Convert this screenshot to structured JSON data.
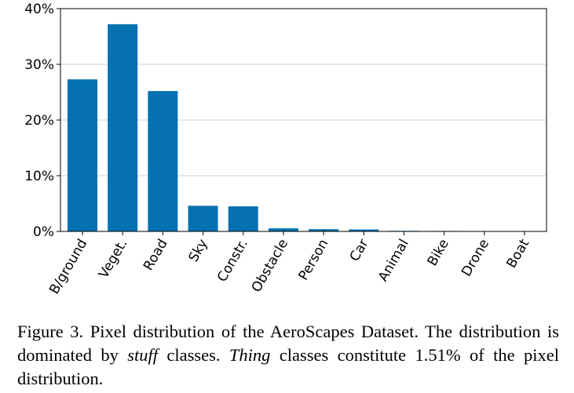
{
  "chart_data": {
    "type": "bar",
    "categories": [
      "B/ground",
      "Veget.",
      "Road",
      "Sky",
      "Constr.",
      "Obstacle",
      "Person",
      "Car",
      "Animal",
      "Bike",
      "Drone",
      "Boat"
    ],
    "values": [
      27.3,
      37.2,
      25.2,
      4.6,
      4.5,
      0.55,
      0.4,
      0.35,
      0.1,
      0.08,
      0.06,
      0.05
    ],
    "yticks": [
      0,
      10,
      20,
      30,
      40
    ],
    "ytick_labels": [
      "0%",
      "10%",
      "20%",
      "30%",
      "40%"
    ],
    "ylim": [
      0,
      40
    ],
    "bar_color": "#0571b0",
    "grid": "y",
    "title": "",
    "xlabel": "",
    "ylabel": ""
  },
  "caption": {
    "prefix": "Figure 3. Pixel distribution of the AeroScapes Dataset. The distribution is dominated by ",
    "stuff": "stuff",
    "middle": " classes. ",
    "thing": "Thing",
    "suffix": " classes constitute 1.51% of the pixel distribution."
  }
}
